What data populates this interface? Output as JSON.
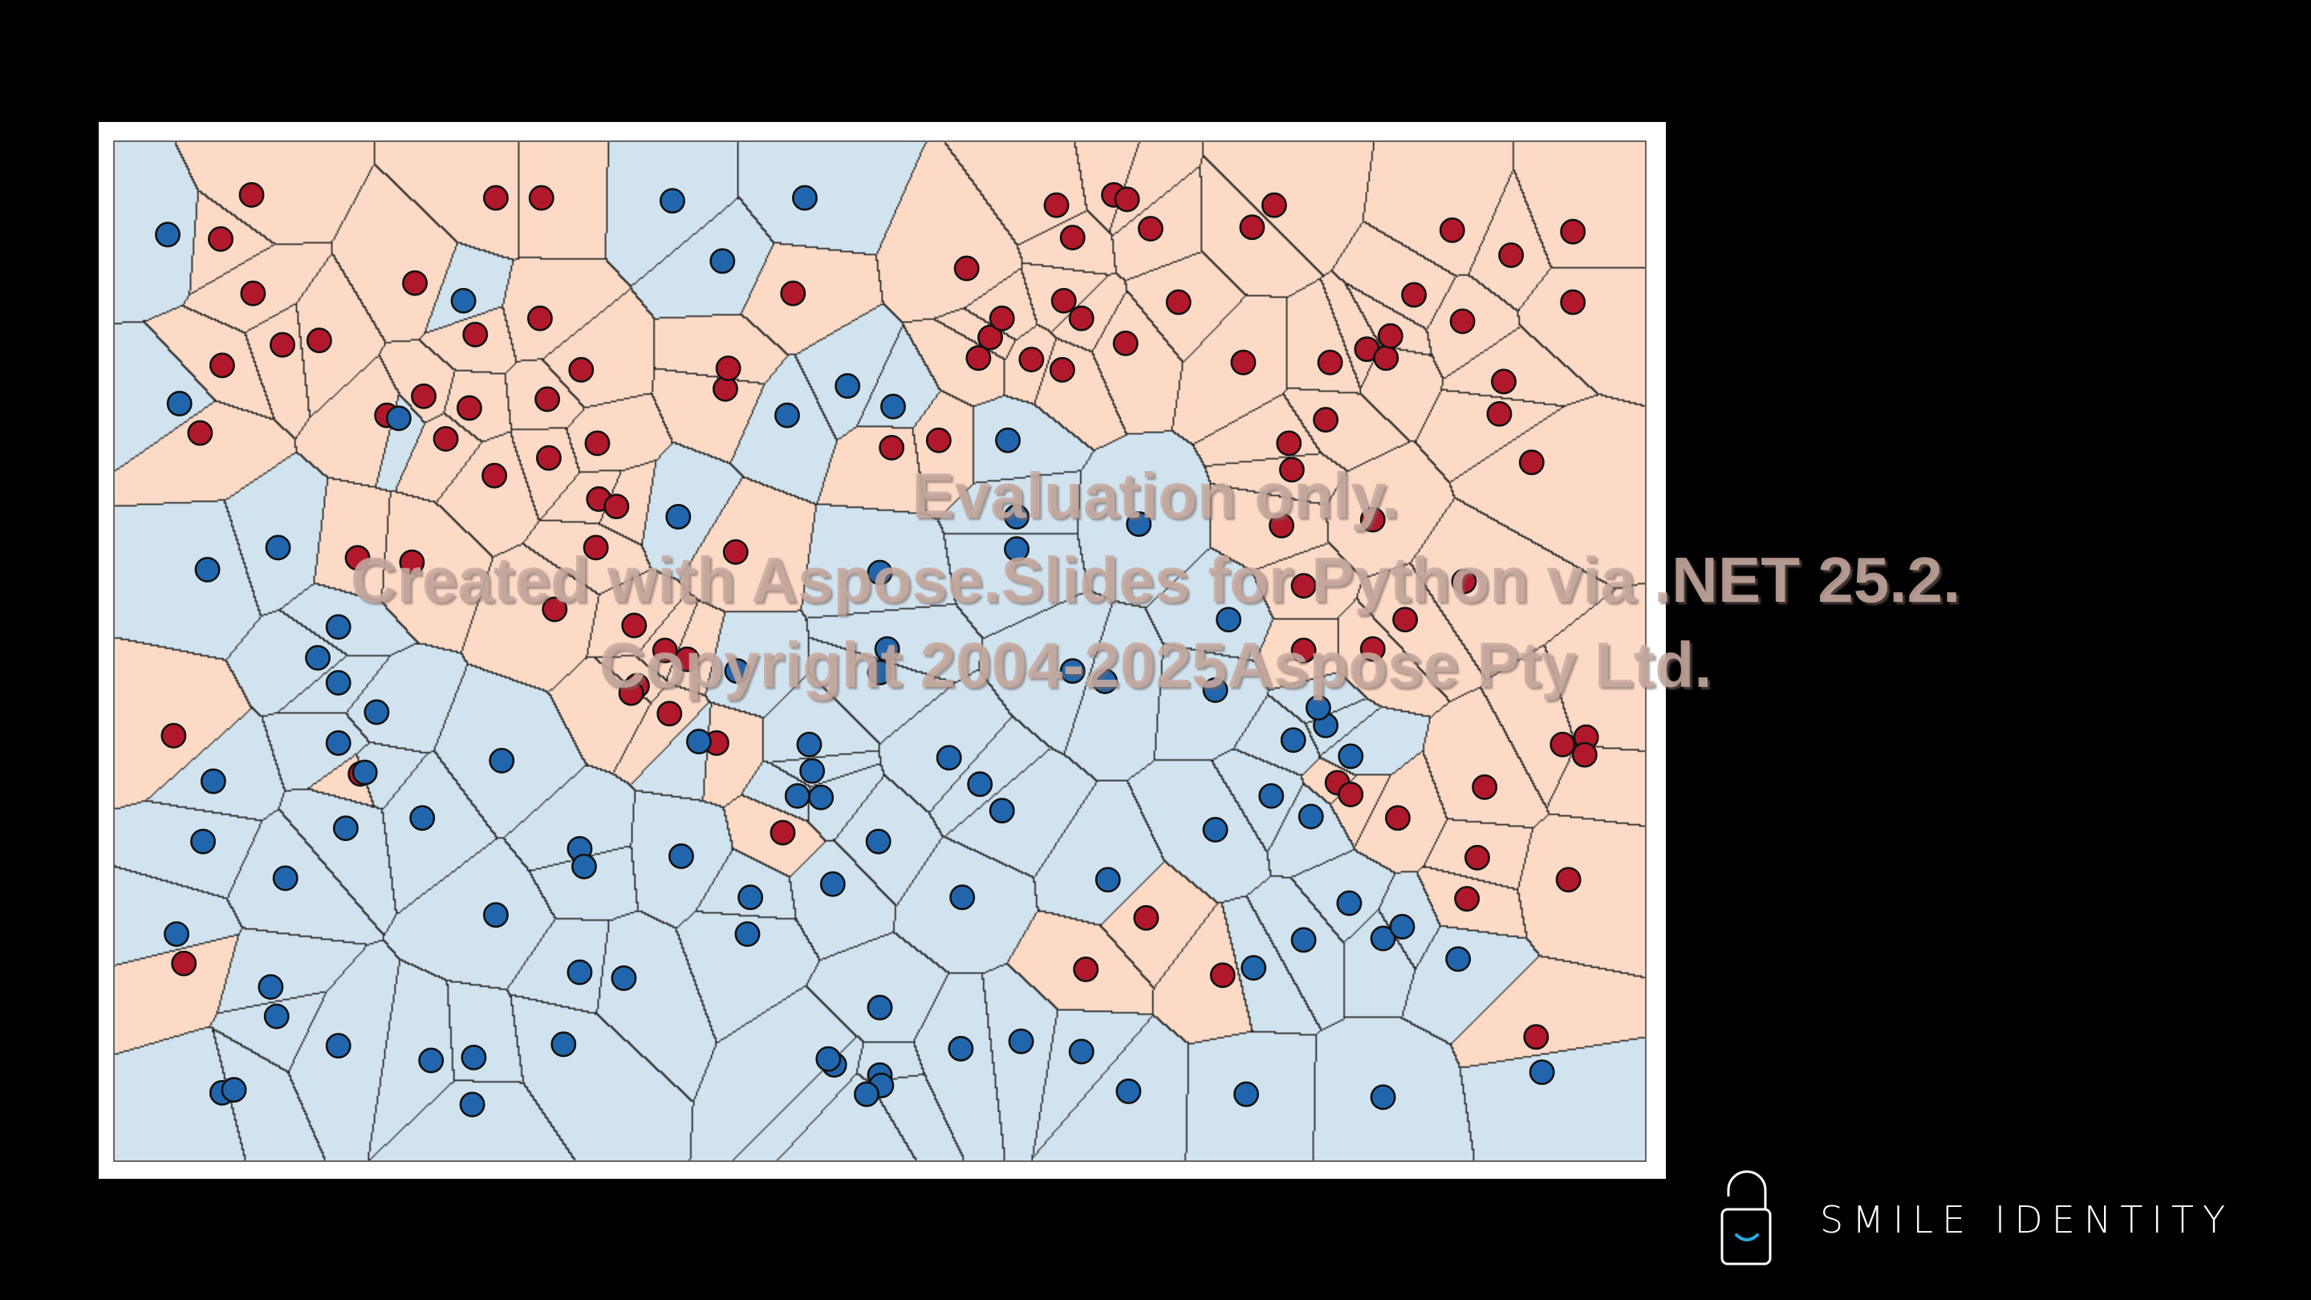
{
  "diagram": {
    "type": "voronoi",
    "classes": [
      {
        "label": "red",
        "point_color": "#b2182b",
        "cell_color": "#fcdac6"
      },
      {
        "label": "blue",
        "point_color": "#2166ac",
        "cell_color": "#d0e3ef"
      }
    ],
    "edge_color": "#2a2a2a"
  },
  "watermark": {
    "line1": "Evaluation only.",
    "line2": "Created with Aspose.Slides for Python via .NET 25.2.",
    "line3": "Copyright 2004-2025Aspose Pty Ltd."
  },
  "logo": {
    "text": "SMILE IDENTITY",
    "icon": "padlock-smile-icon",
    "accent": "#29a8e0"
  }
}
